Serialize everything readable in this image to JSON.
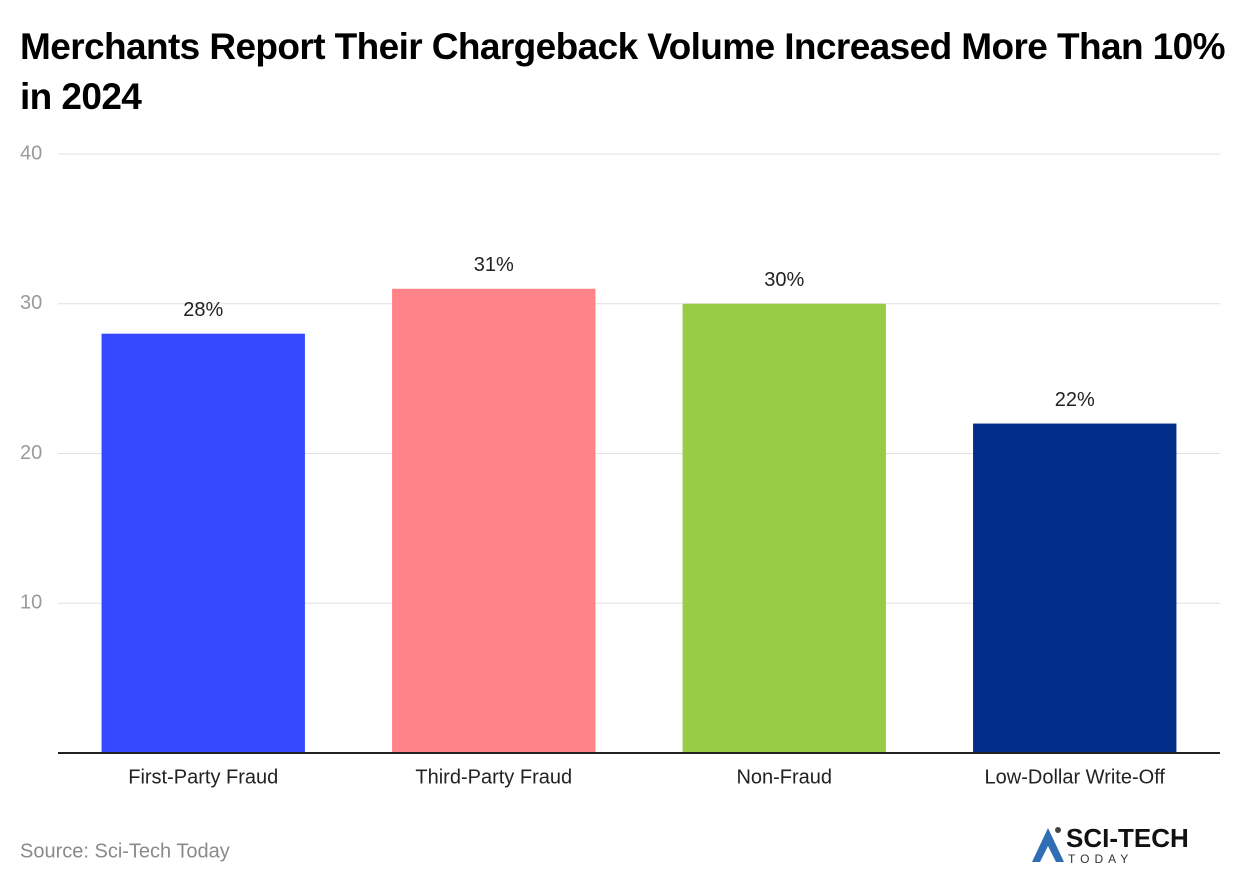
{
  "chart_data": {
    "type": "bar",
    "title": "Merchants Report Their Chargeback Volume Increased More Than 10% in 2024",
    "categories": [
      "First-Party Fraud",
      "Third-Party Fraud",
      "Non-Fraud",
      "Low-Dollar Write-Off"
    ],
    "values": [
      28,
      31,
      30,
      22
    ],
    "value_labels": [
      "28%",
      "31%",
      "30%",
      "22%"
    ],
    "colors": [
      "#3448ff",
      "#ff8389",
      "#99cc45",
      "#002d87"
    ],
    "ylim": [
      0,
      40
    ],
    "yticks": [
      10,
      20,
      30,
      40
    ],
    "grid": true,
    "source": "Source: Sci-Tech Today",
    "logo": {
      "line1": "SCI-TECH",
      "line2": "TODAY"
    }
  }
}
